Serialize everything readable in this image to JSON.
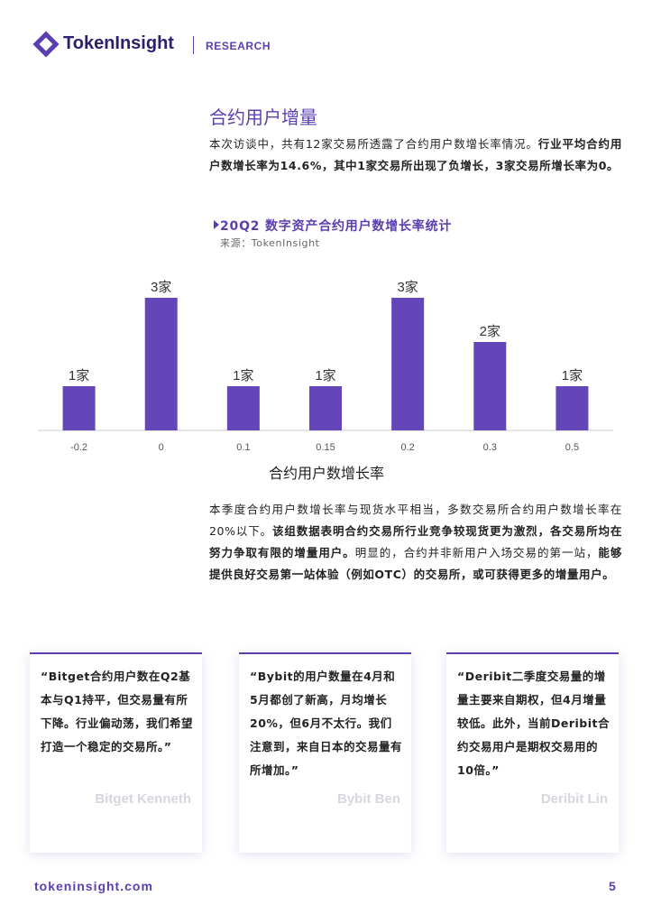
{
  "header": {
    "brand": "TokenInsight",
    "section": "RESEARCH"
  },
  "section_title": "合约用户增量",
  "paragraph_1": [
    {
      "text": "本次访谈中，共有12家交易所透露了合约用户数增长率情况。",
      "bold": false
    },
    {
      "text": "行业平均合约用户数增长率为14.6%，其中1家交易所出现了负增长，3家交易所增长率为0。",
      "bold": true
    }
  ],
  "chart_data": {
    "type": "bar",
    "title": "20Q2 数字资产合约用户数增长率统计",
    "source": "来源：TokenInsight",
    "x_label": "合约用户数增长率",
    "categories": [
      "-0.2",
      "0",
      "0.1",
      "0.15",
      "0.2",
      "0.3",
      "0.5"
    ],
    "values": [
      1,
      3,
      1,
      1,
      3,
      2,
      1
    ],
    "value_labels": [
      "1家",
      "3家",
      "1家",
      "1家",
      "3家",
      "2家",
      "1家"
    ],
    "color": "#6446b8",
    "ylim": [
      0,
      3
    ]
  },
  "paragraph_2": [
    {
      "text": "本季度合约用户数增长率与现货水平相当，多数交易所合约用户数增长率在20%以下。",
      "bold": false
    },
    {
      "text": "该组数据表明合约交易所行业竞争较现货更为激烈，各交易所均在努力争取有限的增量用户。",
      "bold": true
    },
    {
      "text": "明显的，合约并非新用户入场交易的第一站，",
      "bold": false
    },
    {
      "text": "能够提供良好交易第一站体验（例如OTC）的交易所，或可获得更多的增量用户。",
      "bold": true
    }
  ],
  "quotes": [
    {
      "text": "“Bitget合约用户数在Q2基本与Q1持平，但交易量有所下降。行业偏动荡，我们希望打造一个稳定的交易所。”",
      "author": "Bitget Kenneth"
    },
    {
      "text": "“Bybit的用户数量在4月和5月都创了新高，月均增长20%，但6月不太行。我们注意到，来自日本的交易量有所增加。”",
      "author": "Bybit Ben"
    },
    {
      "text": "“Deribit二季度交易量的增量主要来自期权，但4月增量较低。此外，当前Deribit合约交易用户是期权交易用的10倍。”",
      "author": "Deribit Lin"
    }
  ],
  "footer": {
    "url": "tokeninsight.com",
    "page": "5"
  }
}
